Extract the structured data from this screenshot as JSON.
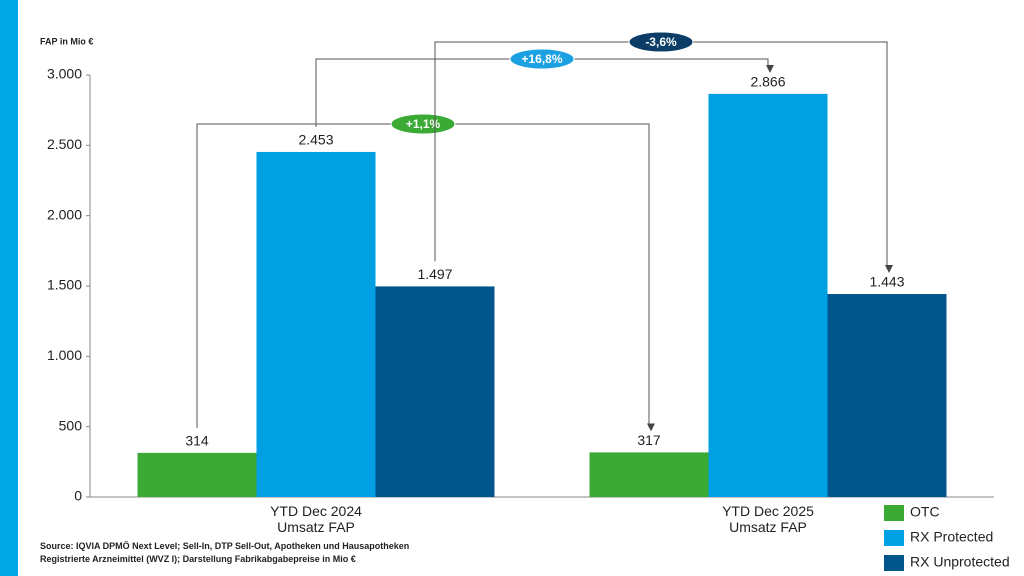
{
  "chart_data": {
    "type": "bar",
    "y_axis_label": "FAP in Mio €",
    "categories": [
      "YTD Dec 2024\nUmsatz FAP",
      "YTD Dec 2025\nUmsatz FAP"
    ],
    "series": [
      {
        "name": "OTC",
        "color": "#3aaa35",
        "values": [
          314,
          317
        ],
        "value_labels": [
          "314",
          "317"
        ]
      },
      {
        "name": "RX Protected",
        "color": "#00a0e3",
        "values": [
          2453,
          2866
        ],
        "value_labels": [
          "2.453",
          "2.866"
        ]
      },
      {
        "name": "RX Unprotected",
        "color": "#00558c",
        "values": [
          1497,
          1443
        ],
        "value_labels": [
          "1.497",
          "1.443"
        ]
      }
    ],
    "ylim": [
      0,
      3000
    ],
    "yticks": [
      0,
      500,
      {
        "value": 1000,
        "label": "1.000"
      },
      {
        "value": 1500,
        "label": "1.500"
      },
      {
        "value": 2000,
        "label": "2.000"
      },
      {
        "value": 2500,
        "label": "2.500"
      },
      {
        "value": 3000,
        "label": "3.000"
      }
    ],
    "annotations": [
      {
        "text": "+1,1%",
        "color": "#3aaa35"
      },
      {
        "text": "+16,8%",
        "color": "#1ba1e2"
      },
      {
        "text": "-3,6%",
        "color": "#0b3d66"
      }
    ],
    "source": [
      "Source: IQVIA DPMÖ Next Level; Sell-In, DTP Sell-Out, Apotheken und Hausapotheken",
      "Registrierte Arzneimittel (WVZ I); Darstellung Fabrikabgabepreise in Mio €"
    ],
    "legend": "bottom-right"
  }
}
